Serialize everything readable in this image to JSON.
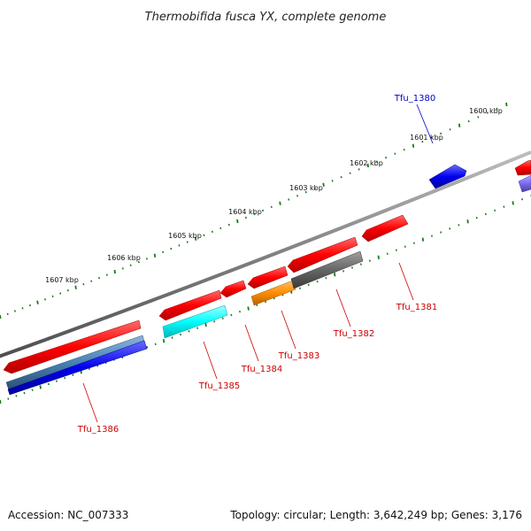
{
  "title": "Thermobifida fusca YX, complete genome",
  "footer": {
    "accession": "Accession: NC_007333",
    "topology": "Topology: circular; Length: 3,642,249 bp; Genes: 3,176"
  },
  "ruler_labels": [
    "1600 kbp",
    "1601 kbp",
    "1602 kbp",
    "1603 kbp",
    "1604 kbp",
    "1605 kbp",
    "1606 kbp",
    "1607 kbp"
  ],
  "gene_labels": {
    "tfu_1380": "Tfu_1380",
    "tfu_1381": "Tfu_1381",
    "tfu_1382": "Tfu_1382",
    "tfu_1383": "Tfu_1383",
    "tfu_1384": "Tfu_1384",
    "tfu_1385": "Tfu_1385",
    "tfu_1386": "Tfu_1386"
  },
  "colors": {
    "cds": "#ff0000",
    "backbone": "#808080",
    "ruler_ticks": "#1a7a1a",
    "label_blue": "#0000cc",
    "label_red": "#cc0000",
    "cyan": "#00ffff",
    "orange": "#ff8c00",
    "grey": "#666666",
    "steelblue": "#4682b4",
    "blue": "#0000ee",
    "lavender": "#7b68ee"
  }
}
